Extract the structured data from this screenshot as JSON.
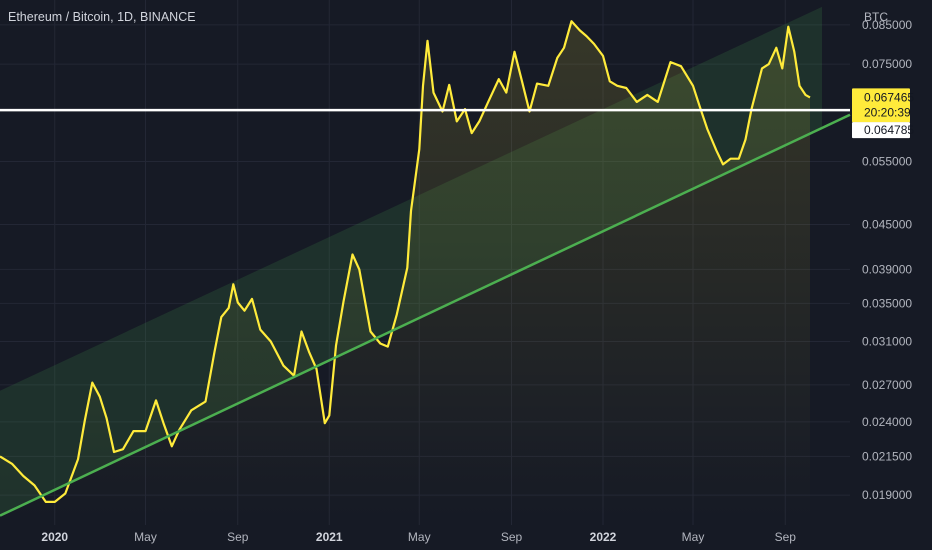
{
  "header": {
    "title": "Ethereum / Bitcoin, 1D, BINANCE",
    "unit": "BTC"
  },
  "colors": {
    "background": "#161a25",
    "price_line": "#ffeb3b",
    "trend_line": "#4caf50",
    "horizontal_line": "#ffffff",
    "channel_fill": "#4caf50"
  },
  "price_tags": {
    "last_price": "0.067465",
    "countdown": "20:20:39",
    "horizontal_level": "0.064785"
  },
  "chart_data": {
    "type": "line",
    "title": "Ethereum / Bitcoin, 1D, BINANCE",
    "y_unit": "BTC",
    "y_scale": "log",
    "ylim": [
      0.0175,
      0.092
    ],
    "xlim": [
      "2019-10-20",
      "2022-10-20"
    ],
    "y_ticks": [
      "0.085000",
      "0.075000",
      "0.055000",
      "0.045000",
      "0.039000",
      "0.035000",
      "0.031000",
      "0.027000",
      "0.024000",
      "0.021500",
      "0.019000"
    ],
    "x_ticks": [
      {
        "label": "2020",
        "date": "2020-01-01",
        "bold": true
      },
      {
        "label": "May",
        "date": "2020-05-01",
        "bold": false
      },
      {
        "label": "Sep",
        "date": "2020-09-01",
        "bold": false
      },
      {
        "label": "2021",
        "date": "2021-01-01",
        "bold": true
      },
      {
        "label": "May",
        "date": "2021-05-01",
        "bold": false
      },
      {
        "label": "Sep",
        "date": "2021-09-01",
        "bold": false
      },
      {
        "label": "2022",
        "date": "2022-01-01",
        "bold": true
      },
      {
        "label": "May",
        "date": "2022-05-01",
        "bold": false
      },
      {
        "label": "Sep",
        "date": "2022-09-01",
        "bold": false
      }
    ],
    "grid": true,
    "series": [
      {
        "values": [
          [
            "2019-10-20",
            0.0215
          ],
          [
            "2019-11-05",
            0.021
          ],
          [
            "2019-11-20",
            0.0202
          ],
          [
            "2019-12-05",
            0.0196
          ],
          [
            "2019-12-20",
            0.0186
          ],
          [
            "2020-01-01",
            0.0186
          ],
          [
            "2020-01-15",
            0.0191
          ],
          [
            "2020-02-01",
            0.0213
          ],
          [
            "2020-02-10",
            0.0241
          ],
          [
            "2020-02-20",
            0.0272
          ],
          [
            "2020-03-01",
            0.026
          ],
          [
            "2020-03-10",
            0.0243
          ],
          [
            "2020-03-20",
            0.0218
          ],
          [
            "2020-04-01",
            0.022
          ],
          [
            "2020-04-15",
            0.0233
          ],
          [
            "2020-05-01",
            0.0233
          ],
          [
            "2020-05-15",
            0.0257
          ],
          [
            "2020-05-25",
            0.0239
          ],
          [
            "2020-06-05",
            0.0222
          ],
          [
            "2020-06-15",
            0.0234
          ],
          [
            "2020-07-01",
            0.0249
          ],
          [
            "2020-07-20",
            0.0256
          ],
          [
            "2020-08-01",
            0.03
          ],
          [
            "2020-08-10",
            0.0335
          ],
          [
            "2020-08-20",
            0.0345
          ],
          [
            "2020-08-26",
            0.0372
          ],
          [
            "2020-09-01",
            0.0351
          ],
          [
            "2020-09-10",
            0.0342
          ],
          [
            "2020-09-20",
            0.0355
          ],
          [
            "2020-10-01",
            0.0322
          ],
          [
            "2020-10-15",
            0.031
          ],
          [
            "2020-11-01",
            0.0287
          ],
          [
            "2020-11-15",
            0.0278
          ],
          [
            "2020-11-25",
            0.032
          ],
          [
            "2020-12-05",
            0.03
          ],
          [
            "2020-12-15",
            0.0284
          ],
          [
            "2020-12-26",
            0.0239
          ],
          [
            "2021-01-01",
            0.0245
          ],
          [
            "2021-01-10",
            0.0306
          ],
          [
            "2021-01-20",
            0.0352
          ],
          [
            "2021-02-01",
            0.0409
          ],
          [
            "2021-02-10",
            0.039
          ],
          [
            "2021-02-25",
            0.032
          ],
          [
            "2021-03-10",
            0.0308
          ],
          [
            "2021-03-20",
            0.0305
          ],
          [
            "2021-04-01",
            0.0338
          ],
          [
            "2021-04-15",
            0.0392
          ],
          [
            "2021-04-20",
            0.047
          ],
          [
            "2021-05-01",
            0.0572
          ],
          [
            "2021-05-06",
            0.07
          ],
          [
            "2021-05-12",
            0.0808
          ],
          [
            "2021-05-20",
            0.0685
          ],
          [
            "2021-06-01",
            0.0645
          ],
          [
            "2021-06-10",
            0.0702
          ],
          [
            "2021-06-20",
            0.0625
          ],
          [
            "2021-07-01",
            0.065
          ],
          [
            "2021-07-10",
            0.0602
          ],
          [
            "2021-07-20",
            0.0625
          ],
          [
            "2021-08-01",
            0.0665
          ],
          [
            "2021-08-15",
            0.0715
          ],
          [
            "2021-08-25",
            0.0685
          ],
          [
            "2021-09-05",
            0.078
          ],
          [
            "2021-09-15",
            0.071
          ],
          [
            "2021-09-25",
            0.0645
          ],
          [
            "2021-10-05",
            0.0705
          ],
          [
            "2021-10-20",
            0.07
          ],
          [
            "2021-11-01",
            0.0765
          ],
          [
            "2021-11-10",
            0.079
          ],
          [
            "2021-11-20",
            0.086
          ],
          [
            "2021-12-01",
            0.0835
          ],
          [
            "2021-12-10",
            0.082
          ],
          [
            "2021-12-20",
            0.08
          ],
          [
            "2022-01-01",
            0.077
          ],
          [
            "2022-01-10",
            0.071
          ],
          [
            "2022-01-20",
            0.07
          ],
          [
            "2022-02-01",
            0.0695
          ],
          [
            "2022-02-15",
            0.0665
          ],
          [
            "2022-03-01",
            0.068
          ],
          [
            "2022-03-15",
            0.0665
          ],
          [
            "2022-04-01",
            0.0755
          ],
          [
            "2022-04-15",
            0.0745
          ],
          [
            "2022-05-01",
            0.07
          ],
          [
            "2022-05-10",
            0.0655
          ],
          [
            "2022-05-20",
            0.061
          ],
          [
            "2022-06-01",
            0.057
          ],
          [
            "2022-06-10",
            0.0545
          ],
          [
            "2022-06-20",
            0.0555
          ],
          [
            "2022-07-01",
            0.0555
          ],
          [
            "2022-07-10",
            0.059
          ],
          [
            "2022-07-18",
            0.065
          ],
          [
            "2022-08-01",
            0.074
          ],
          [
            "2022-08-10",
            0.075
          ],
          [
            "2022-08-20",
            0.079
          ],
          [
            "2022-08-28",
            0.074
          ],
          [
            "2022-09-05",
            0.0845
          ],
          [
            "2022-09-13",
            0.078
          ],
          [
            "2022-09-20",
            0.07
          ],
          [
            "2022-09-28",
            0.068
          ],
          [
            "2022-10-04",
            0.067465
          ]
        ]
      }
    ],
    "trend_line": {
      "start": [
        "2019-10-20",
        0.0178
      ],
      "end": [
        "2022-10-20",
        0.0612
      ]
    },
    "channel_upper": {
      "start": [
        "2019-10-20",
        0.0265
      ],
      "end": [
        "2022-10-20",
        0.09
      ]
    },
    "horizontal_level": 0.064785
  }
}
